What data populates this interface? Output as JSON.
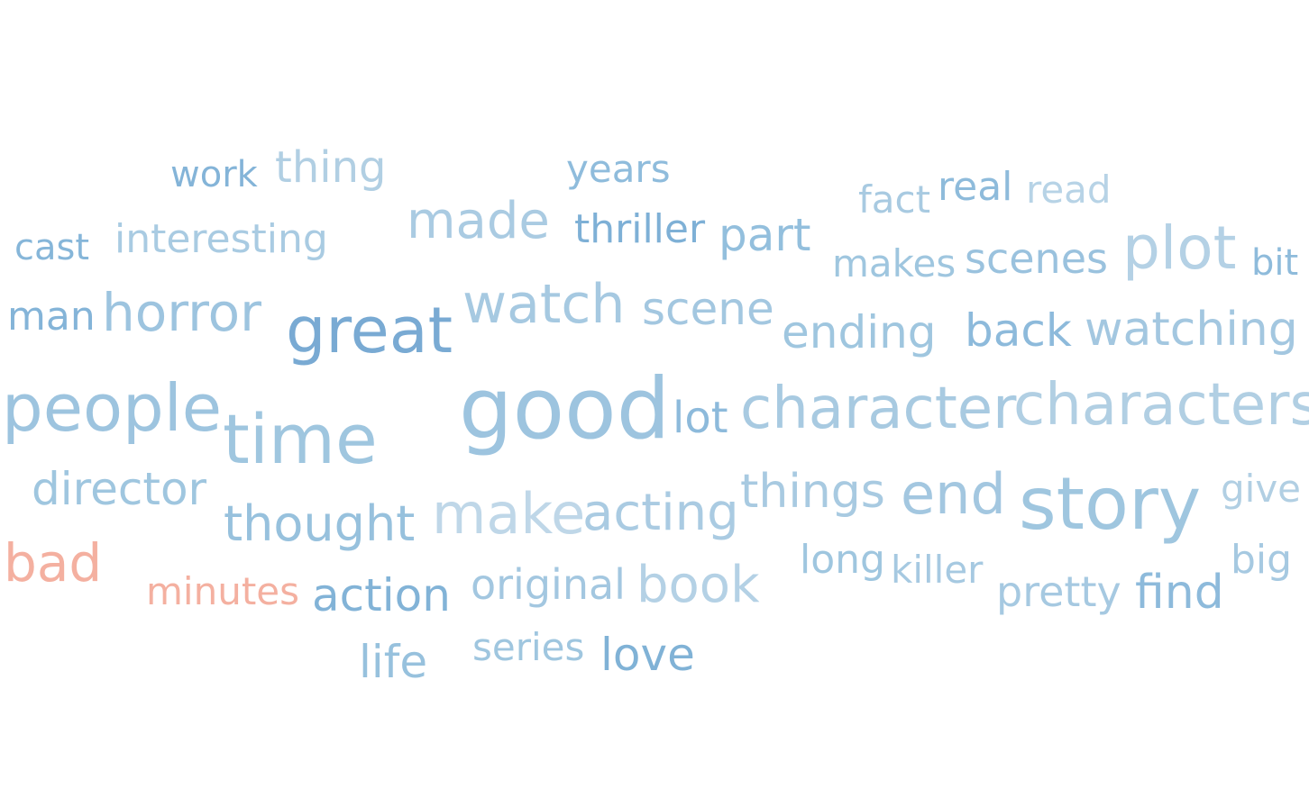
{
  "words": [
    {
      "text": "work",
      "color": "#84b4d8"
    },
    {
      "text": "thing",
      "color": "#b1cfe3"
    },
    {
      "text": "years",
      "color": "#8fbcdc"
    },
    {
      "text": "fact",
      "color": "#a8cae1"
    },
    {
      "text": "real",
      "color": "#8ebbdb"
    },
    {
      "text": "read",
      "color": "#b7d3e6"
    },
    {
      "text": "cast",
      "color": "#86b6d9"
    },
    {
      "text": "interesting",
      "color": "#a9cbe2"
    },
    {
      "text": "made",
      "color": "#aacbe2"
    },
    {
      "text": "thriller",
      "color": "#7eb0d6"
    },
    {
      "text": "part",
      "color": "#93bfdd"
    },
    {
      "text": "makes",
      "color": "#9fc6df"
    },
    {
      "text": "scenes",
      "color": "#9ac2de"
    },
    {
      "text": "plot",
      "color": "#b4d1e5"
    },
    {
      "text": "bit",
      "color": "#8ebbdb"
    },
    {
      "text": "man",
      "color": "#84b4d8"
    },
    {
      "text": "horror",
      "color": "#9dc4df"
    },
    {
      "text": "great",
      "color": "#79aad3"
    },
    {
      "text": "watch",
      "color": "#a6c9e1"
    },
    {
      "text": "scene",
      "color": "#a3c7e0"
    },
    {
      "text": "ending",
      "color": "#9fc6df"
    },
    {
      "text": "back",
      "color": "#8dbadb"
    },
    {
      "text": "watching",
      "color": "#a3c7e0"
    },
    {
      "text": "people",
      "color": "#9dc4df"
    },
    {
      "text": "time",
      "color": "#9fc6df"
    },
    {
      "text": "good",
      "color": "#9dc4df"
    },
    {
      "text": "lot",
      "color": "#8dbadb"
    },
    {
      "text": "character",
      "color": "#a8cae1"
    },
    {
      "text": "characters",
      "color": "#b1cfe3"
    },
    {
      "text": "director",
      "color": "#9fc6df"
    },
    {
      "text": "thought",
      "color": "#97c1dd"
    },
    {
      "text": "make",
      "color": "#bfd7e8"
    },
    {
      "text": "acting",
      "color": "#aacbe2"
    },
    {
      "text": "things",
      "color": "#a8cae1"
    },
    {
      "text": "end",
      "color": "#a3c7e0"
    },
    {
      "text": "story",
      "color": "#9fc6df"
    },
    {
      "text": "give",
      "color": "#b1cfe3"
    },
    {
      "text": "bad",
      "color": "#f4b0a0"
    },
    {
      "text": "minutes",
      "color": "#f4b0a0"
    },
    {
      "text": "action",
      "color": "#82b3d7"
    },
    {
      "text": "original",
      "color": "#a3c7e0"
    },
    {
      "text": "book",
      "color": "#b4d1e5"
    },
    {
      "text": "long",
      "color": "#9fc6df"
    },
    {
      "text": "killer",
      "color": "#a6c9e1"
    },
    {
      "text": "pretty",
      "color": "#a6c9e1"
    },
    {
      "text": "find",
      "color": "#8dbadb"
    },
    {
      "text": "big",
      "color": "#a6c9e1"
    },
    {
      "text": "life",
      "color": "#97c1dd"
    },
    {
      "text": "series",
      "color": "#9fc6df"
    },
    {
      "text": "love",
      "color": "#80b2d6"
    }
  ]
}
